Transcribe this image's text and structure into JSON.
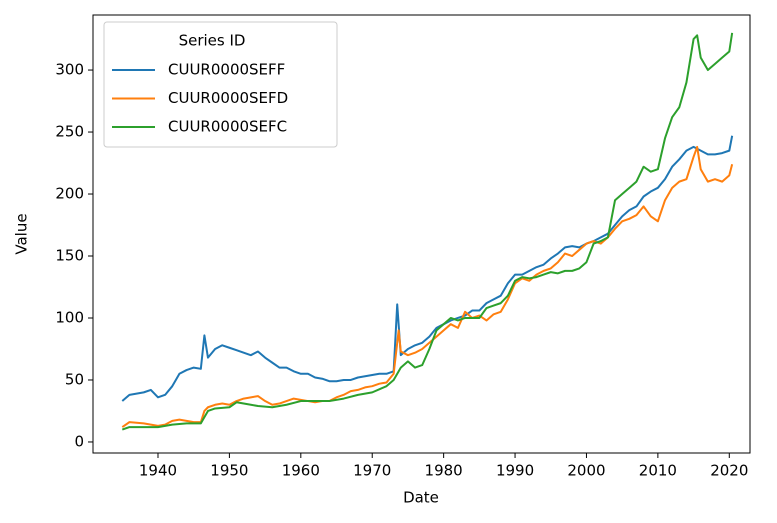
{
  "chart_data": {
    "type": "line",
    "xlabel": "Date",
    "ylabel": "Value",
    "legend_title": "Series ID",
    "legend": "upper left",
    "xlim": [
      1930.9,
      2022.9
    ],
    "ylim": [
      -8.9,
      344.4
    ],
    "xticks": [
      1940,
      1950,
      1960,
      1970,
      1980,
      1990,
      2000,
      2010,
      2020
    ],
    "yticks": [
      0,
      50,
      100,
      150,
      200,
      250,
      300
    ],
    "series": [
      {
        "name": "CUUR0000SEFF",
        "color": "#1f77b4",
        "x": [
          1935,
          1936,
          1938,
          1939,
          1940,
          1941,
          1942,
          1943,
          1944,
          1945,
          1946,
          1946.5,
          1947,
          1948,
          1949,
          1950,
          1951,
          1952,
          1953,
          1954,
          1955,
          1956,
          1957,
          1958,
          1959,
          1960,
          1961,
          1962,
          1963,
          1964,
          1965,
          1966,
          1967,
          1968,
          1969,
          1970,
          1971,
          1972,
          1973,
          1973.5,
          1974,
          1975,
          1976,
          1977,
          1978,
          1979,
          1980,
          1981,
          1982,
          1983,
          1984,
          1985,
          1986,
          1987,
          1988,
          1989,
          1990,
          1991,
          1992,
          1993,
          1994,
          1995,
          1996,
          1997,
          1998,
          1999,
          2000,
          2001,
          2002,
          2003,
          2004,
          2005,
          2006,
          2007,
          2008,
          2009,
          2010,
          2011,
          2012,
          2013,
          2014,
          2015,
          2016,
          2017,
          2018,
          2019,
          2020,
          2020.4
        ],
        "values": [
          33,
          38,
          40,
          42,
          36,
          38,
          45,
          55,
          58,
          60,
          59,
          86,
          68,
          75,
          78,
          76,
          74,
          72,
          70,
          73,
          68,
          64,
          60,
          60,
          57,
          55,
          55,
          52,
          51,
          49,
          49,
          50,
          50,
          52,
          53,
          54,
          55,
          55,
          57,
          111,
          70,
          75,
          78,
          80,
          85,
          92,
          95,
          98,
          100,
          102,
          106,
          106,
          112,
          115,
          118,
          128,
          135,
          135,
          138,
          141,
          143,
          148,
          152,
          157,
          158,
          157,
          160,
          162,
          165,
          168,
          175,
          182,
          187,
          190,
          198,
          202,
          205,
          212,
          222,
          228,
          235,
          238,
          235,
          232,
          232,
          233,
          235,
          247
        ]
      },
      {
        "name": "CUUR0000SEFD",
        "color": "#ff7f0e",
        "x": [
          1935,
          1936,
          1938,
          1939,
          1940,
          1941,
          1942,
          1943,
          1944,
          1945,
          1946,
          1946.5,
          1947,
          1948,
          1949,
          1950,
          1951,
          1952,
          1953,
          1954,
          1955,
          1956,
          1957,
          1958,
          1959,
          1960,
          1961,
          1962,
          1963,
          1964,
          1965,
          1966,
          1967,
          1968,
          1969,
          1970,
          1971,
          1972,
          1973,
          1973.7,
          1974,
          1975,
          1976,
          1977,
          1978,
          1979,
          1980,
          1981,
          1982,
          1983,
          1984,
          1985,
          1986,
          1987,
          1988,
          1989,
          1990,
          1991,
          1992,
          1993,
          1994,
          1995,
          1996,
          1997,
          1998,
          1999,
          2000,
          2001,
          2002,
          2003,
          2004,
          2005,
          2006,
          2007,
          2008,
          2009,
          2010,
          2011,
          2012,
          2013,
          2014,
          2015,
          2015.5,
          2016,
          2017,
          2018,
          2019,
          2020,
          2020.4
        ],
        "values": [
          12,
          16,
          15,
          14,
          13,
          14,
          17,
          18,
          17,
          16,
          16,
          25,
          28,
          30,
          31,
          30,
          33,
          35,
          36,
          37,
          33,
          30,
          31,
          33,
          35,
          34,
          33,
          32,
          33,
          33,
          36,
          38,
          41,
          42,
          44,
          45,
          47,
          48,
          55,
          90,
          73,
          70,
          72,
          75,
          80,
          85,
          90,
          95,
          92,
          105,
          100,
          102,
          98,
          103,
          105,
          115,
          128,
          132,
          130,
          135,
          138,
          140,
          145,
          152,
          150,
          155,
          160,
          162,
          160,
          165,
          172,
          178,
          180,
          183,
          190,
          182,
          178,
          195,
          205,
          210,
          212,
          230,
          238,
          220,
          210,
          212,
          210,
          215,
          224
        ]
      },
      {
        "name": "CUUR0000SEFC",
        "color": "#2ca02c",
        "x": [
          1935,
          1936,
          1938,
          1940,
          1942,
          1944,
          1946,
          1946.5,
          1947,
          1948,
          1950,
          1951,
          1952,
          1953,
          1954,
          1956,
          1958,
          1960,
          1962,
          1964,
          1966,
          1968,
          1970,
          1972,
          1973,
          1974,
          1975,
          1976,
          1977,
          1978,
          1979,
          1980,
          1981,
          1982,
          1983,
          1984,
          1985,
          1986,
          1987,
          1988,
          1989,
          1990,
          1991,
          1992,
          1993,
          1994,
          1995,
          1996,
          1997,
          1998,
          1999,
          2000,
          2001,
          2002,
          2003,
          2004,
          2005,
          2006,
          2007,
          2008,
          2009,
          2010,
          2011,
          2012,
          2013,
          2014,
          2015,
          2015.5,
          2016,
          2017,
          2018,
          2019,
          2020,
          2020.4
        ],
        "values": [
          10,
          12,
          12,
          12,
          14,
          15,
          15,
          20,
          25,
          27,
          28,
          32,
          31,
          30,
          29,
          28,
          30,
          33,
          33,
          33,
          35,
          38,
          40,
          45,
          50,
          60,
          65,
          60,
          62,
          75,
          90,
          95,
          100,
          98,
          100,
          100,
          100,
          108,
          110,
          112,
          118,
          130,
          133,
          132,
          133,
          135,
          137,
          136,
          138,
          138,
          140,
          145,
          160,
          162,
          165,
          195,
          200,
          205,
          210,
          222,
          218,
          220,
          245,
          262,
          270,
          290,
          325,
          328,
          310,
          300,
          305,
          310,
          315,
          330
        ]
      }
    ]
  }
}
